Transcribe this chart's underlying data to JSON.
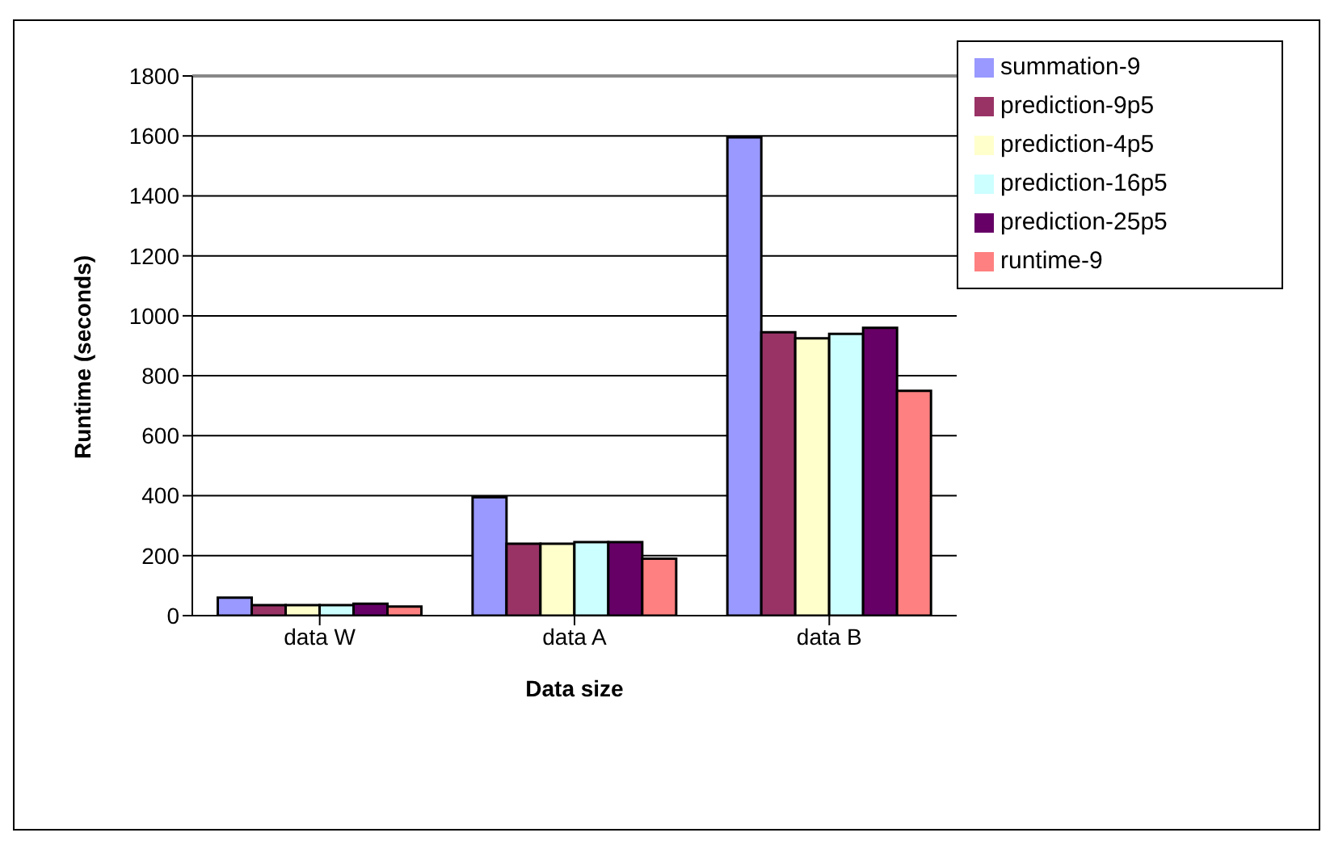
{
  "chart_data": {
    "type": "bar",
    "xlabel": "Data size",
    "ylabel": "Runtime (seconds)",
    "categories": [
      "data W",
      "data A",
      "data B"
    ],
    "series": [
      {
        "name": "summation-9",
        "color": "#9999ff",
        "values": [
          60,
          395,
          1595
        ]
      },
      {
        "name": "prediction-9p5",
        "color": "#993366",
        "values": [
          35,
          240,
          945
        ]
      },
      {
        "name": "prediction-4p5",
        "color": "#ffffcc",
        "values": [
          35,
          240,
          925
        ]
      },
      {
        "name": "prediction-16p5",
        "color": "#ccffff",
        "values": [
          35,
          245,
          940
        ]
      },
      {
        "name": "prediction-25p5",
        "color": "#660066",
        "values": [
          40,
          245,
          960
        ]
      },
      {
        "name": "runtime-9",
        "color": "#ff8080",
        "values": [
          30,
          190,
          750
        ]
      }
    ],
    "ylim": [
      0,
      1800
    ],
    "yticks": [
      0,
      200,
      400,
      600,
      800,
      1000,
      1200,
      1400,
      1600,
      1800
    ],
    "grid": "y",
    "legend": "top right"
  }
}
